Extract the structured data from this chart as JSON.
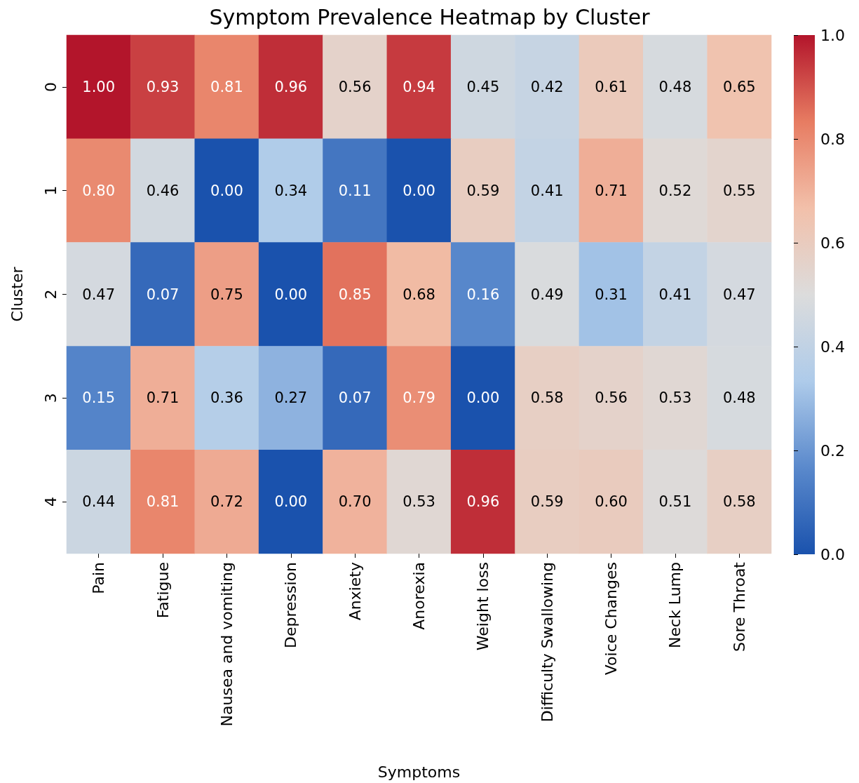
{
  "chart_data": {
    "type": "heatmap",
    "title": "Symptom Prevalence Heatmap by Cluster",
    "xlabel": "Symptoms",
    "ylabel": "Cluster",
    "categories": [
      "Pain",
      "Fatigue",
      "Nausea and vomiting",
      "Depression",
      "Anxiety",
      "Anorexia",
      "Weight loss",
      "Difficulty Swallowing",
      "Voice Changes",
      "Neck Lump",
      "Sore Throat"
    ],
    "y_categories": [
      "0",
      "1",
      "2",
      "3",
      "4"
    ],
    "cells": [
      [
        1.0,
        0.93,
        0.81,
        0.96,
        0.56,
        0.94,
        0.45,
        0.42,
        0.61,
        0.48,
        0.65
      ],
      [
        0.8,
        0.46,
        0.0,
        0.34,
        0.11,
        0.0,
        0.59,
        0.41,
        0.71,
        0.52,
        0.55
      ],
      [
        0.47,
        0.07,
        0.75,
        0.0,
        0.85,
        0.68,
        0.16,
        0.49,
        0.31,
        0.41,
        0.47
      ],
      [
        0.15,
        0.71,
        0.36,
        0.27,
        0.07,
        0.79,
        0.0,
        0.58,
        0.56,
        0.53,
        0.48
      ],
      [
        0.44,
        0.81,
        0.72,
        0.0,
        0.7,
        0.53,
        0.96,
        0.59,
        0.6,
        0.51,
        0.58
      ]
    ],
    "cell_labels": [
      [
        "1.00",
        "0.93",
        "0.81",
        "0.96",
        "0.56",
        "0.94",
        "0.45",
        "0.42",
        "0.61",
        "0.48",
        "0.65"
      ],
      [
        "0.80",
        "0.46",
        "0.00",
        "0.34",
        "0.11",
        "0.00",
        "0.59",
        "0.41",
        "0.71",
        "0.52",
        "0.55"
      ],
      [
        "0.47",
        "0.07",
        "0.75",
        "0.00",
        "0.85",
        "0.68",
        "0.16",
        "0.49",
        "0.31",
        "0.41",
        "0.47"
      ],
      [
        "0.15",
        "0.71",
        "0.36",
        "0.27",
        "0.07",
        "0.79",
        "0.00",
        "0.58",
        "0.56",
        "0.53",
        "0.48"
      ],
      [
        "0.44",
        "0.81",
        "0.72",
        "0.00",
        "0.70",
        "0.53",
        "0.96",
        "0.59",
        "0.60",
        "0.51",
        "0.58"
      ]
    ],
    "clim": [
      0,
      1
    ],
    "grid": false,
    "cticks": [
      {
        "value": 0,
        "label": "0.0"
      },
      {
        "value": 0.2,
        "label": "0.2"
      },
      {
        "value": 0.4,
        "label": "0.4"
      },
      {
        "value": 0.6,
        "label": "0.6"
      },
      {
        "value": 0.8,
        "label": "0.8"
      },
      {
        "value": 1,
        "label": "1.0"
      }
    ]
  }
}
